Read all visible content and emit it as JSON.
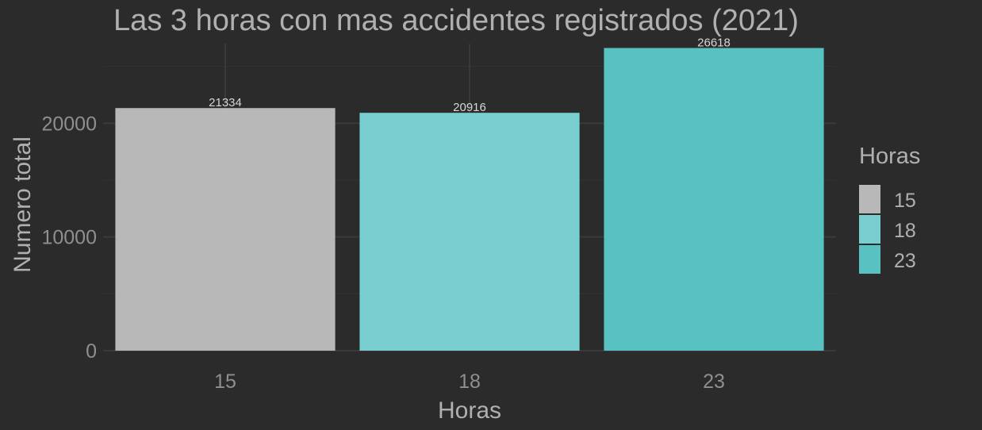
{
  "chart_data": {
    "type": "bar",
    "title": "Las 3 horas con mas accidentes registrados (2021)",
    "xlabel": "Horas",
    "ylabel": "Numero total",
    "categories": [
      "15",
      "18",
      "23"
    ],
    "values": [
      21334,
      20916,
      26618
    ],
    "data_labels": [
      "21334",
      "20916",
      "26618"
    ],
    "colors": [
      "#b8b8b8",
      "#79cfcf",
      "#58c2c2"
    ],
    "ylim": [
      0,
      27000
    ],
    "yticks": [
      0,
      10000,
      20000
    ],
    "ytick_labels": [
      "0",
      "10000",
      "20000"
    ],
    "grid": true,
    "legend": {
      "title": "Horas",
      "position": "right",
      "entries": [
        "15",
        "18",
        "23"
      ]
    }
  },
  "theme": {
    "background": "#2b2b2b",
    "grid_major": "#3a3a3a",
    "grid_minor": "#333333",
    "text": "#b0b0b0",
    "tick_text": "#8f8f8f"
  }
}
